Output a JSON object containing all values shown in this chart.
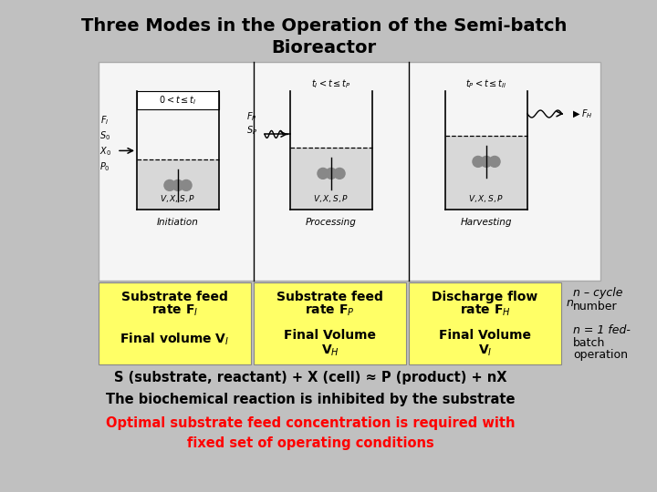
{
  "title_line1": "Three Modes in the Operation of the Semi-batch",
  "title_line2": "Bioreactor",
  "bg_color": "#c0c0c0",
  "title_color": "#000000",
  "yellow_color": "#ffff66",
  "box1_line1": "Substrate feed",
  "box1_line2": "rate F",
  "box1_sub2": "I",
  "box1_line3": "Final volume V",
  "box1_sub3": "I",
  "box2_line1": "Substrate feed",
  "box2_line2": "rate F",
  "box2_sub2": "P",
  "box2_line3": "Final Volume",
  "box2_line4": "V",
  "box2_sub4": "H",
  "box3_line1": "Discharge flow",
  "box3_line2": "rate F",
  "box3_sub2": "H",
  "box3_line3": "Final Volume",
  "box3_line4": "V",
  "box3_sub4": "I",
  "right_text1": "n – cycle",
  "right_text2": "number",
  "right_text3": "n = 1 fed-",
  "right_text4": "batch",
  "right_text5": "operation",
  "bottom_text1": "S (substrate, reactant) + X (cell) ≈ P (product) + nX",
  "bottom_text2": "The biochemical reaction is inhibited by the substrate",
  "bottom_text3": "Optimal substrate feed concentration is required with",
  "bottom_text4": "fixed set of operating conditions",
  "red_color": "#ff0000",
  "diagram_bg": "#f0f0f0",
  "diagram_border": "#888888",
  "n_label": "n"
}
